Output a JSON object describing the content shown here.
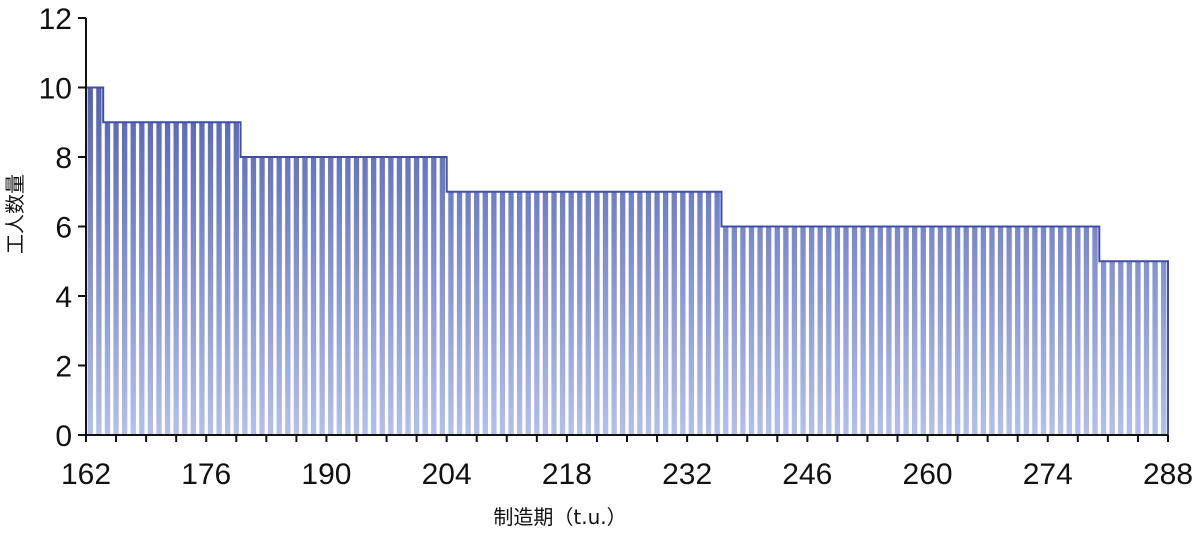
{
  "chart_data": {
    "type": "bar",
    "xlabel": "制造期（t.u.）",
    "ylabel": "工人数量",
    "xlim": [
      162,
      288
    ],
    "ylim": [
      0,
      12
    ],
    "x_ticks": [
      162,
      176,
      190,
      204,
      218,
      232,
      246,
      260,
      274,
      288
    ],
    "y_ticks": [
      0,
      2,
      4,
      6,
      8,
      10,
      12
    ],
    "grid": false,
    "series": [
      {
        "x": [
          162,
          163,
          164,
          165,
          166,
          167,
          168,
          169,
          170,
          171,
          172,
          173,
          174,
          175,
          176,
          177,
          178,
          179,
          180,
          181,
          182,
          183,
          184,
          185,
          186,
          187,
          188,
          189,
          190,
          191,
          192,
          193,
          194,
          195,
          196,
          197,
          198,
          199,
          200,
          201,
          202,
          203,
          204,
          205,
          206,
          207,
          208,
          209,
          210,
          211,
          212,
          213,
          214,
          215,
          216,
          217,
          218,
          219,
          220,
          221,
          222,
          223,
          224,
          225,
          226,
          227,
          228,
          229,
          230,
          231,
          232,
          233,
          234,
          235,
          236,
          237,
          238,
          239,
          240,
          241,
          242,
          243,
          244,
          245,
          246,
          247,
          248,
          249,
          250,
          251,
          252,
          253,
          254,
          255,
          256,
          257,
          258,
          259,
          260,
          261,
          262,
          263,
          264,
          265,
          266,
          267,
          268,
          269,
          270,
          271,
          272,
          273,
          274,
          275,
          276,
          277,
          278,
          279,
          280,
          281,
          282,
          283,
          284,
          285,
          286,
          287
        ],
        "values": [
          10,
          10,
          9,
          9,
          9,
          9,
          9,
          9,
          9,
          9,
          9,
          9,
          9,
          9,
          9,
          9,
          9,
          9,
          8,
          8,
          8,
          8,
          8,
          8,
          8,
          8,
          8,
          8,
          8,
          8,
          8,
          8,
          8,
          8,
          8,
          8,
          8,
          8,
          8,
          8,
          8,
          8,
          7,
          7,
          7,
          7,
          7,
          7,
          7,
          7,
          7,
          7,
          7,
          7,
          7,
          7,
          7,
          7,
          7,
          7,
          7,
          7,
          7,
          7,
          7,
          7,
          7,
          7,
          7,
          7,
          7,
          7,
          7,
          7,
          6,
          6,
          6,
          6,
          6,
          6,
          6,
          6,
          6,
          6,
          6,
          6,
          6,
          6,
          6,
          6,
          6,
          6,
          6,
          6,
          6,
          6,
          6,
          6,
          6,
          6,
          6,
          6,
          6,
          6,
          6,
          6,
          6,
          6,
          6,
          6,
          6,
          6,
          6,
          6,
          6,
          6,
          6,
          6,
          5,
          5,
          5,
          5,
          5,
          5,
          5,
          5
        ]
      }
    ],
    "colors": {
      "bar_top": "#3f4fa8",
      "bar_bottom": "#b3c0ea",
      "axis": "#111111"
    }
  }
}
